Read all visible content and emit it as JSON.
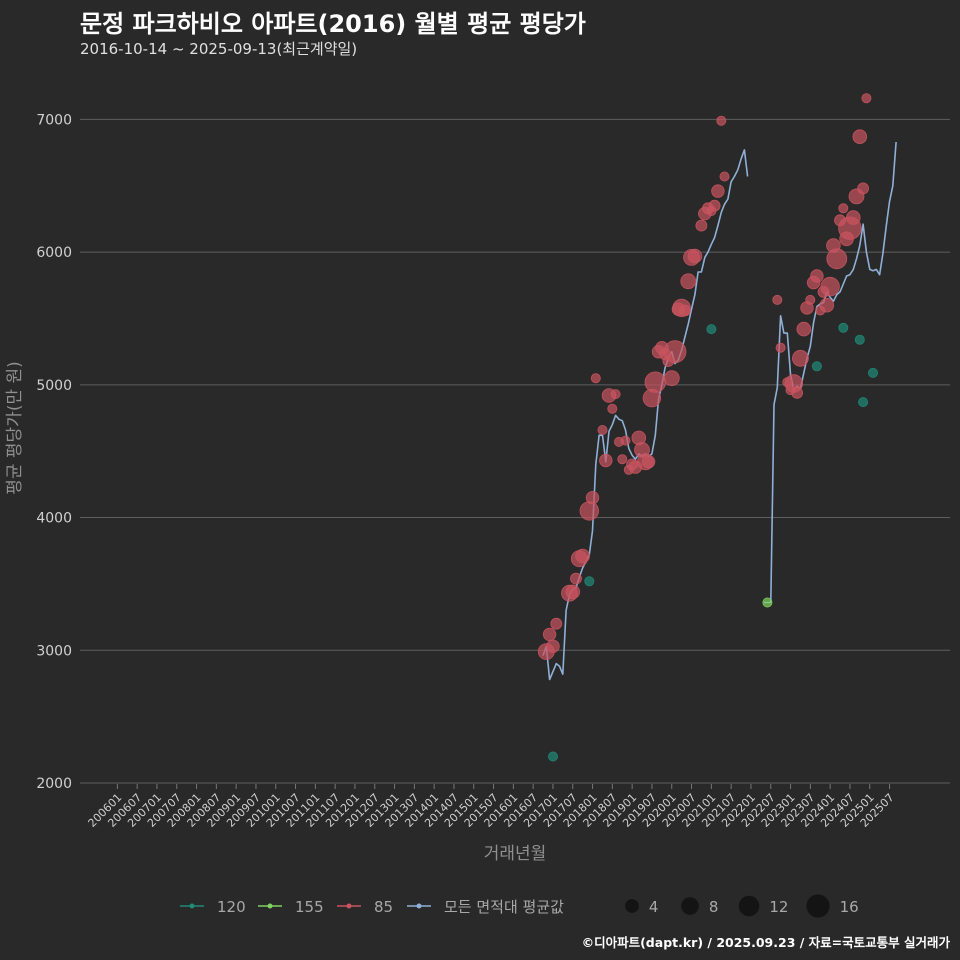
{
  "header": {
    "title": "문정 파크하비오 아파트(2016) 월별 평균 평당가",
    "subtitle": "2016-10-14 ~ 2025-09-13(최근계약일)"
  },
  "footer": {
    "credit": "©디아파트(dapt.kr) / 2025.09.23 / 자료=국토교통부 실거래가"
  },
  "colors": {
    "background": "#292929",
    "grid": "#5e5e5e",
    "s120": "#1f8a78",
    "s155": "#7fd35e",
    "s85": "#c9545f",
    "avg": "#8fb0d6"
  },
  "chart_data": {
    "type": "scatter+line",
    "title": "문정 파크하비오 아파트(2016) 월별 평균 평당가",
    "xlabel": "거래년월",
    "ylabel": "평균 평당가(만 원)",
    "ylim": [
      2000,
      7000
    ],
    "yticks": [
      2000,
      3000,
      4000,
      5000,
      6000,
      7000
    ],
    "xlim_month_index": [
      0,
      237
    ],
    "xticks": [
      "200601",
      "200607",
      "200701",
      "200707",
      "200801",
      "200807",
      "200901",
      "200907",
      "201001",
      "201007",
      "201101",
      "201107",
      "201201",
      "201207",
      "201301",
      "201307",
      "201401",
      "201407",
      "201501",
      "201507",
      "201601",
      "201607",
      "201701",
      "201707",
      "201801",
      "201807",
      "201901",
      "201907",
      "202001",
      "202007",
      "202101",
      "202107",
      "202201",
      "202207",
      "202301",
      "202307",
      "202401",
      "202407",
      "202501",
      "202507"
    ],
    "legend": {
      "series_items": [
        {
          "key": "s120",
          "label": "120"
        },
        {
          "key": "s155",
          "label": "155"
        },
        {
          "key": "s85",
          "label": "85"
        },
        {
          "key": "avg",
          "label": "모든 면적대 평균값"
        }
      ],
      "size_items": [
        4,
        8,
        12,
        16
      ]
    },
    "average_line": [
      [
        "201610",
        2960
      ],
      [
        "201611",
        3030
      ],
      [
        "201612",
        2780
      ],
      [
        "201701",
        2840
      ],
      [
        "201702",
        2900
      ],
      [
        "201703",
        2880
      ],
      [
        "201704",
        2820
      ],
      [
        "201705",
        3300
      ],
      [
        "201706",
        3420
      ],
      [
        "201707",
        3460
      ],
      [
        "201708",
        3470
      ],
      [
        "201709",
        3550
      ],
      [
        "201710",
        3620
      ],
      [
        "201711",
        3670
      ],
      [
        "201712",
        3720
      ],
      [
        "201801",
        3900
      ],
      [
        "201802",
        4400
      ],
      [
        "201803",
        4620
      ],
      [
        "201804",
        4620
      ],
      [
        "201805",
        4420
      ],
      [
        "201806",
        4650
      ],
      [
        "201807",
        4700
      ],
      [
        "201808",
        4770
      ],
      [
        "201809",
        4740
      ],
      [
        "201810",
        4730
      ],
      [
        "201811",
        4660
      ],
      [
        "201812",
        4520
      ],
      [
        "201901",
        4470
      ],
      [
        "201902",
        4440
      ],
      [
        "201903",
        4480
      ],
      [
        "201904",
        4460
      ],
      [
        "201905",
        4480
      ],
      [
        "201906",
        4460
      ],
      [
        "201907",
        4480
      ],
      [
        "201908",
        4620
      ],
      [
        "201909",
        4890
      ],
      [
        "201910",
        5000
      ],
      [
        "201911",
        5130
      ],
      [
        "201912",
        5200
      ],
      [
        "202001",
        5250
      ],
      [
        "202002",
        5160
      ],
      [
        "202003",
        5190
      ],
      [
        "202004",
        5260
      ],
      [
        "202005",
        5360
      ],
      [
        "202006",
        5460
      ],
      [
        "202007",
        5570
      ],
      [
        "202008",
        5680
      ],
      [
        "202009",
        5850
      ],
      [
        "202010",
        5850
      ],
      [
        "202011",
        5960
      ],
      [
        "202012",
        6000
      ],
      [
        "202101",
        6060
      ],
      [
        "202102",
        6110
      ],
      [
        "202103",
        6200
      ],
      [
        "202104",
        6300
      ],
      [
        "202105",
        6360
      ],
      [
        "202106",
        6400
      ],
      [
        "202107",
        6530
      ],
      [
        "202108",
        6570
      ],
      [
        "202109",
        6620
      ],
      [
        "202110",
        6700
      ],
      [
        "202111",
        6770
      ],
      [
        "202112",
        6570
      ],
      [
        "202201",
        null
      ],
      [
        "202202",
        null
      ],
      [
        "202203",
        null
      ],
      [
        "202204",
        null
      ],
      [
        "202205",
        3360
      ],
      [
        "202206",
        3360
      ],
      [
        "202207",
        3360
      ],
      [
        "202208",
        4850
      ],
      [
        "202209",
        4980
      ],
      [
        "202210",
        5520
      ],
      [
        "202211",
        5390
      ],
      [
        "202212",
        5390
      ],
      [
        "202301",
        5080
      ],
      [
        "202302",
        4960
      ],
      [
        "202303",
        4990
      ],
      [
        "202304",
        4970
      ],
      [
        "202305",
        5090
      ],
      [
        "202306",
        5200
      ],
      [
        "202307",
        5290
      ],
      [
        "202308",
        5470
      ],
      [
        "202309",
        5590
      ],
      [
        "202310",
        5610
      ],
      [
        "202311",
        5620
      ],
      [
        "202312",
        5700
      ],
      [
        "202401",
        5660
      ],
      [
        "202402",
        5630
      ],
      [
        "202403",
        5680
      ],
      [
        "202404",
        5700
      ],
      [
        "202405",
        5760
      ],
      [
        "202406",
        5820
      ],
      [
        "202407",
        5830
      ],
      [
        "202408",
        5870
      ],
      [
        "202409",
        5950
      ],
      [
        "202410",
        6050
      ],
      [
        "202411",
        6210
      ],
      [
        "202412",
        6000
      ],
      [
        "202501",
        5870
      ],
      [
        "202502",
        5860
      ],
      [
        "202503",
        5870
      ],
      [
        "202504",
        5830
      ],
      [
        "202505",
        5990
      ],
      [
        "202506",
        6200
      ],
      [
        "202507",
        6380
      ],
      [
        "202508",
        6500
      ],
      [
        "202509",
        6830
      ]
    ],
    "points_85": [
      [
        "201611",
        2990,
        6
      ],
      [
        "201612",
        3120,
        3
      ],
      [
        "201701",
        3030,
        3
      ],
      [
        "201702",
        3200,
        2
      ],
      [
        "201706",
        3430,
        6
      ],
      [
        "201707",
        3440,
        4
      ],
      [
        "201708",
        3540,
        2
      ],
      [
        "201709",
        3690,
        6
      ],
      [
        "201710",
        3710,
        4
      ],
      [
        "201712",
        4050,
        9
      ],
      [
        "201801",
        4150,
        3
      ],
      [
        "201802",
        5050,
        1
      ],
      [
        "201804",
        4660,
        1
      ],
      [
        "201805",
        4430,
        3
      ],
      [
        "201806",
        4920,
        4
      ],
      [
        "201807",
        4820,
        1
      ],
      [
        "201808",
        4930,
        1
      ],
      [
        "201809",
        4570,
        1
      ],
      [
        "201810",
        4440,
        1
      ],
      [
        "201811",
        4580,
        1
      ],
      [
        "201812",
        4360,
        1
      ],
      [
        "201901",
        4400,
        2
      ],
      [
        "201902",
        4380,
        3
      ],
      [
        "201903",
        4600,
        4
      ],
      [
        "201904",
        4510,
        5
      ],
      [
        "201905",
        4420,
        6
      ],
      [
        "201906",
        4420,
        3
      ],
      [
        "201907",
        4900,
        8
      ],
      [
        "201908",
        5020,
        12
      ],
      [
        "201909",
        5250,
        3
      ],
      [
        "201910",
        5280,
        3
      ],
      [
        "201911",
        5230,
        2
      ],
      [
        "201912",
        5180,
        2
      ],
      [
        "202001",
        5050,
        5
      ],
      [
        "202002",
        5250,
        14
      ],
      [
        "202003",
        5570,
        3
      ],
      [
        "202004",
        5580,
        8
      ],
      [
        "202005",
        5560,
        2
      ],
      [
        "202006",
        5780,
        5
      ],
      [
        "202007",
        5960,
        6
      ],
      [
        "202008",
        5970,
        4
      ],
      [
        "202010",
        6200,
        2
      ],
      [
        "202011",
        6290,
        3
      ],
      [
        "202012",
        6330,
        2
      ],
      [
        "202101",
        6310,
        1
      ],
      [
        "202102",
        6350,
        2
      ],
      [
        "202103",
        6460,
        3
      ],
      [
        "202104",
        6990,
        1
      ],
      [
        "202105",
        6570,
        1
      ],
      [
        "202209",
        5640,
        1
      ],
      [
        "202210",
        5280,
        1
      ],
      [
        "202212",
        5020,
        1
      ],
      [
        "202301",
        4960,
        1
      ],
      [
        "202302",
        5010,
        8
      ],
      [
        "202303",
        4940,
        2
      ],
      [
        "202304",
        5200,
        6
      ],
      [
        "202305",
        5420,
        4
      ],
      [
        "202306",
        5580,
        3
      ],
      [
        "202307",
        5640,
        1
      ],
      [
        "202308",
        5770,
        3
      ],
      [
        "202309",
        5820,
        3
      ],
      [
        "202310",
        5560,
        1
      ],
      [
        "202311",
        5700,
        2
      ],
      [
        "202312",
        5600,
        4
      ],
      [
        "202401",
        5740,
        9
      ],
      [
        "202402",
        6050,
        4
      ],
      [
        "202403",
        5950,
        11
      ],
      [
        "202404",
        6240,
        2
      ],
      [
        "202405",
        6330,
        1
      ],
      [
        "202406",
        6100,
        4
      ],
      [
        "202407",
        6180,
        15
      ],
      [
        "202408",
        6260,
        4
      ],
      [
        "202409",
        6420,
        5
      ],
      [
        "202410",
        6870,
        4
      ],
      [
        "202411",
        6480,
        2
      ],
      [
        "202412",
        7160,
        1
      ]
    ],
    "points_120": [
      [
        "201701",
        2200,
        1
      ],
      [
        "201712",
        3520,
        1
      ],
      [
        "202101",
        5420,
        1
      ],
      [
        "202309",
        5140,
        1
      ],
      [
        "202405",
        5430,
        1
      ],
      [
        "202410",
        5340,
        1
      ],
      [
        "202411",
        4870,
        1
      ],
      [
        "202502",
        5090,
        1
      ]
    ],
    "points_155": [
      [
        "202206",
        3360,
        1
      ]
    ]
  }
}
